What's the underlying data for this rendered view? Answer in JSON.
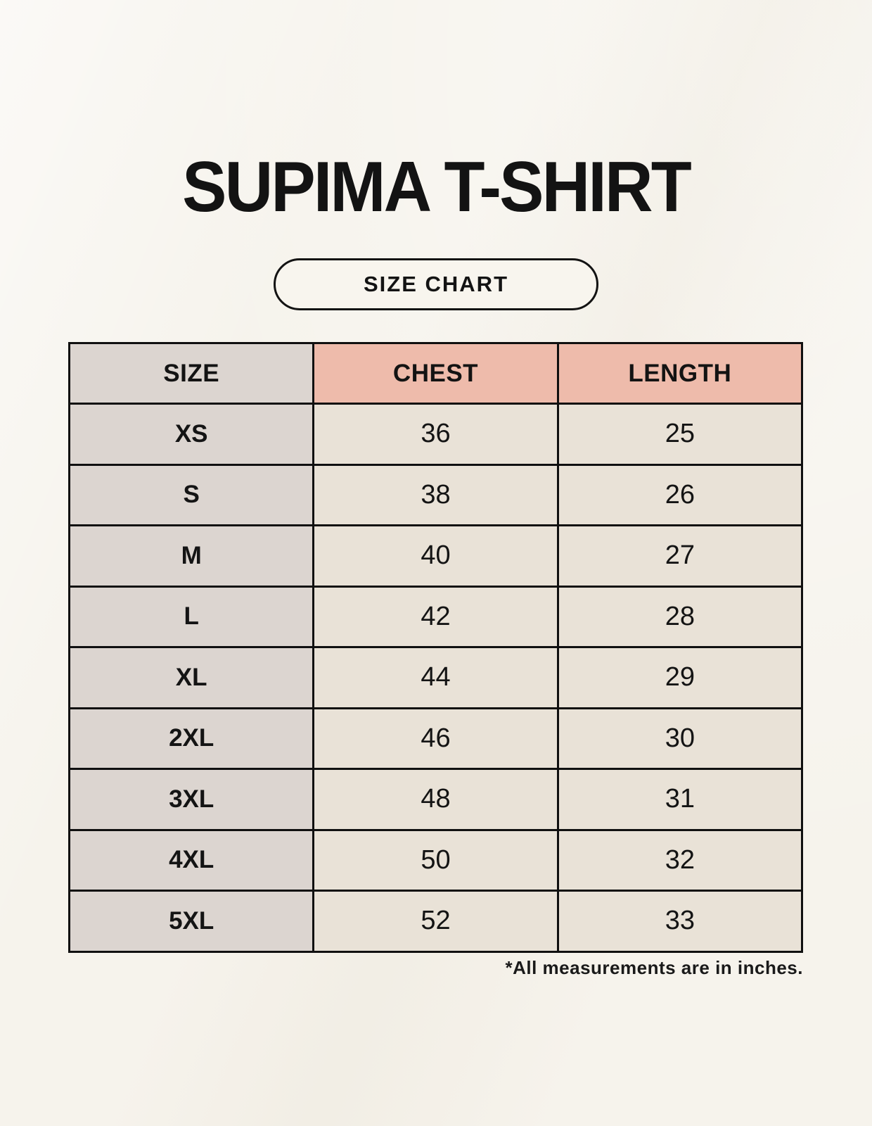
{
  "page": {
    "title": "SUPIMA T-SHIRT",
    "button_label": "SIZE CHART",
    "footnote": "*All measurements are in inches."
  },
  "table": {
    "headers": [
      "SIZE",
      "CHEST",
      "LENGTH"
    ],
    "rows": [
      {
        "size": "XS",
        "chest": "36",
        "length": "25"
      },
      {
        "size": "S",
        "chest": "38",
        "length": "26"
      },
      {
        "size": "M",
        "chest": "40",
        "length": "27"
      },
      {
        "size": "L",
        "chest": "42",
        "length": "28"
      },
      {
        "size": "XL",
        "chest": "44",
        "length": "29"
      },
      {
        "size": "2XL",
        "chest": "46",
        "length": "30"
      },
      {
        "size": "3XL",
        "chest": "48",
        "length": "31"
      },
      {
        "size": "4XL",
        "chest": "50",
        "length": "32"
      },
      {
        "size": "5XL",
        "chest": "52",
        "length": "33"
      }
    ]
  },
  "colors": {
    "background": "#f6f3ec",
    "header_accent_pink": "#eebbab",
    "size_column_gray": "#dcd5d0",
    "value_cell_beige": "#e9e2d7",
    "table_border": "#101010",
    "text": "#141414"
  },
  "chart_data": {
    "type": "table",
    "title": "SUPIMA T-SHIRT",
    "subtitle": "SIZE CHART",
    "columns": [
      "SIZE",
      "CHEST",
      "LENGTH"
    ],
    "rows": [
      [
        "XS",
        36,
        25
      ],
      [
        "S",
        38,
        26
      ],
      [
        "M",
        40,
        27
      ],
      [
        "L",
        42,
        28
      ],
      [
        "XL",
        44,
        29
      ],
      [
        "2XL",
        46,
        30
      ],
      [
        "3XL",
        48,
        31
      ],
      [
        "4XL",
        50,
        32
      ],
      [
        "5XL",
        52,
        33
      ]
    ],
    "units": "inches",
    "note": "*All measurements are in inches."
  }
}
